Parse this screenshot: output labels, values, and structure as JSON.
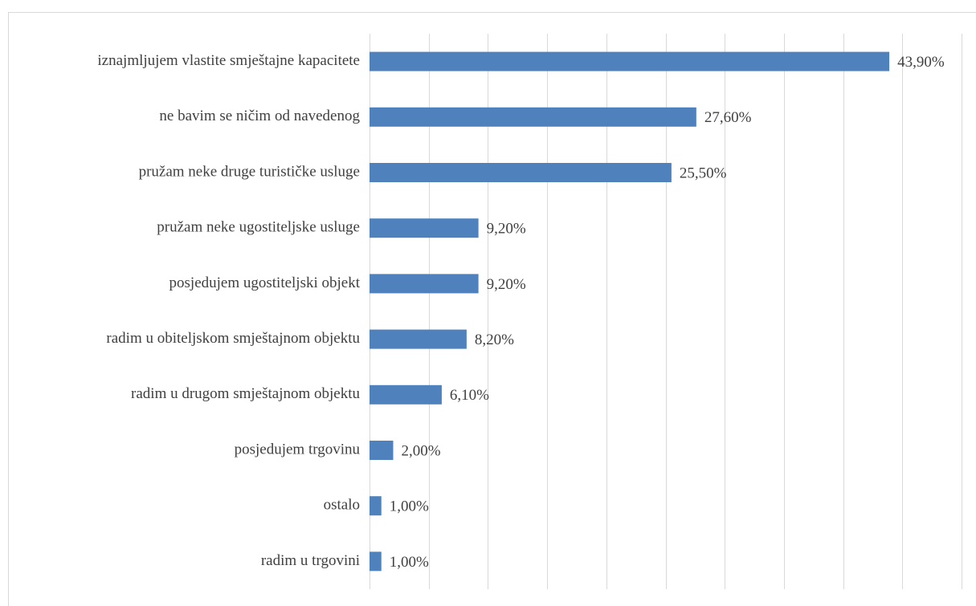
{
  "chart_data": {
    "type": "bar",
    "orientation": "horizontal",
    "categories": [
      "iznajmljujem vlastite smještajne kapacitete",
      "ne bavim se ničim od navedenog",
      "pružam neke druge turističke usluge",
      "pružam neke ugostiteljske usluge",
      "posjedujem ugostiteljski objekt",
      "radim u obiteljskom smještajnom objektu",
      "radim u drugom smještajnom objektu",
      "posjedujem trgovinu",
      "ostalo",
      "radim u trgovini"
    ],
    "values": [
      43.9,
      27.6,
      25.5,
      9.2,
      9.2,
      8.2,
      6.1,
      2.0,
      1.0,
      1.0
    ],
    "value_labels": [
      "43,90%",
      "27,60%",
      "25,50%",
      "9,20%",
      "9,20%",
      "8,20%",
      "6,10%",
      "2,00%",
      "1,00%",
      "1,00%"
    ],
    "color": "#4f81bd",
    "xlim": [
      0,
      50
    ],
    "xticks": [
      0,
      5,
      10,
      15,
      20,
      25,
      30,
      35,
      40,
      45,
      50
    ],
    "grid": true
  }
}
